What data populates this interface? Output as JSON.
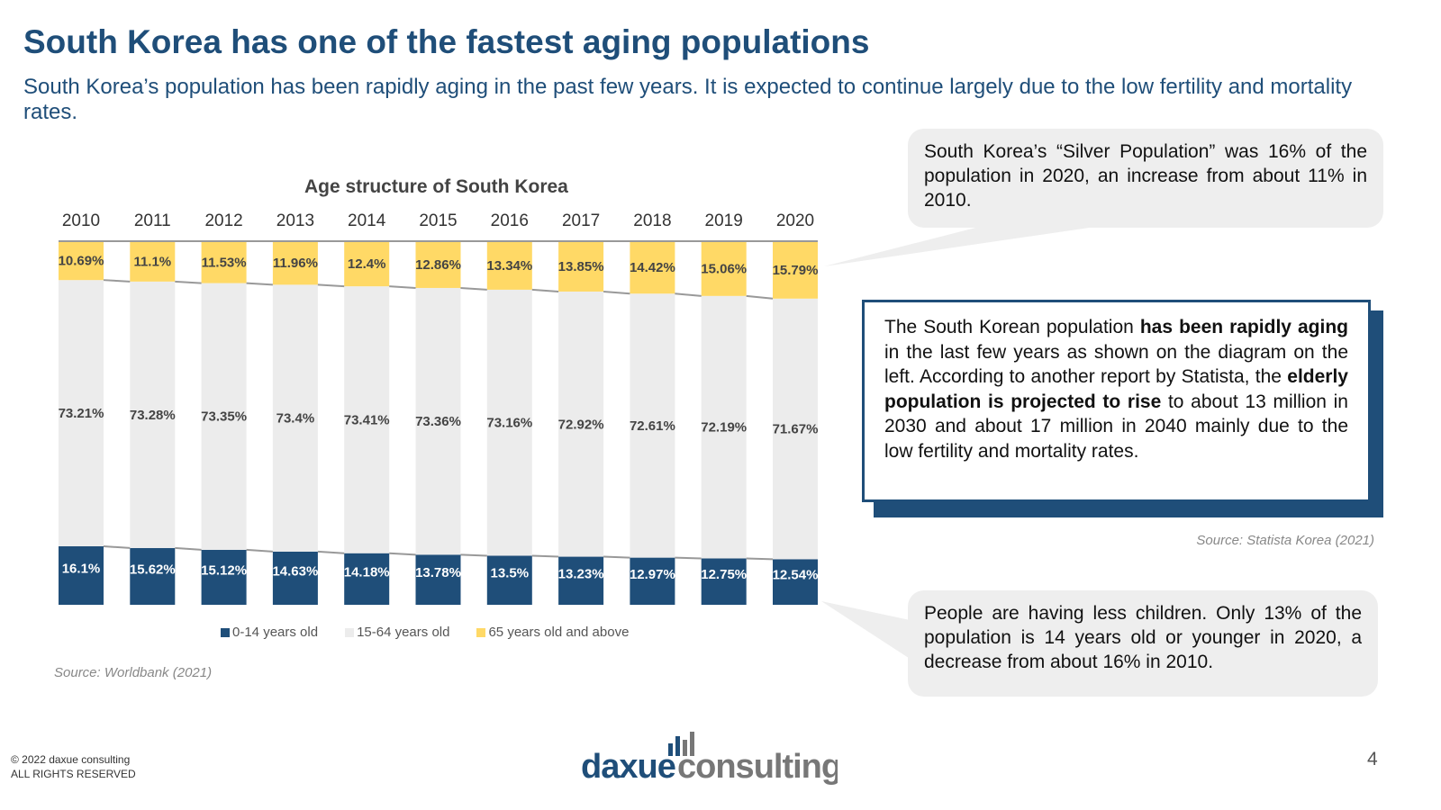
{
  "header": {
    "title": "South Korea has one of the fastest aging populations",
    "subtitle": "South Korea’s population has been rapidly aging in the past few years. It is expected to continue largely due to the low fertility and mortality rates."
  },
  "chart_data": {
    "type": "bar",
    "stacked": true,
    "title": "Age structure of South Korea",
    "categories": [
      "2010",
      "2011",
      "2012",
      "2013",
      "2014",
      "2015",
      "2016",
      "2017",
      "2018",
      "2019",
      "2020"
    ],
    "series": [
      {
        "name": "0-14 years old",
        "color": "#1f4e79",
        "values": [
          16.1,
          15.62,
          15.12,
          14.63,
          14.18,
          13.78,
          13.5,
          13.23,
          12.97,
          12.75,
          12.54
        ],
        "labels": [
          "16.1%",
          "15.62%",
          "15.12%",
          "14.63%",
          "14.18%",
          "13.78%",
          "13.5%",
          "13.23%",
          "12.97%",
          "12.75%",
          "12.54%"
        ]
      },
      {
        "name": "15-64 years old",
        "color": "#ececec",
        "values": [
          73.21,
          73.28,
          73.35,
          73.4,
          73.41,
          73.36,
          73.16,
          72.92,
          72.61,
          72.19,
          71.67
        ],
        "labels": [
          "73.21%",
          "73.28%",
          "73.35%",
          "73.4%",
          "73.41%",
          "73.36%",
          "73.16%",
          "72.92%",
          "72.61%",
          "72.19%",
          "71.67%"
        ]
      },
      {
        "name": "65 years old and  above",
        "color": "#ffd966",
        "values": [
          10.69,
          11.1,
          11.53,
          11.96,
          12.4,
          12.86,
          13.34,
          13.85,
          14.42,
          15.06,
          15.79
        ],
        "labels": [
          "10.69%",
          "11.1%",
          "11.53%",
          "11.96%",
          "12.4%",
          "12.86%",
          "13.34%",
          "13.85%",
          "14.42%",
          "15.06%",
          "15.79%"
        ]
      }
    ],
    "ylim": [
      0,
      100
    ],
    "legend": "bottom",
    "source": "Source: Worldbank (2021)"
  },
  "callouts": {
    "silver": "South Korea’s “Silver Population” was 16% of the population in 2020, an increase from about 11% in 2010.",
    "children": "People are having less children. Only 13% of the population is 14 years old or younger in 2020, a decrease from about 16% in 2010.",
    "main_parts": [
      "The South Korean population ",
      "has been rapidly aging",
      " in the last few years as shown on the diagram on the left. According to another report by Statista, the ",
      "elderly population is projected to rise",
      " to about 13 million in 2030 and about 17 million in 2040 mainly due to the low fertility and mortality rates."
    ],
    "source": "Source: Statista Korea (2021)"
  },
  "footer": {
    "copyright": "© 2022 daxue consulting",
    "rights": "ALL RIGHTS RESERVED",
    "page": "4",
    "logo_left": "daxue",
    "logo_right": "consulting"
  }
}
